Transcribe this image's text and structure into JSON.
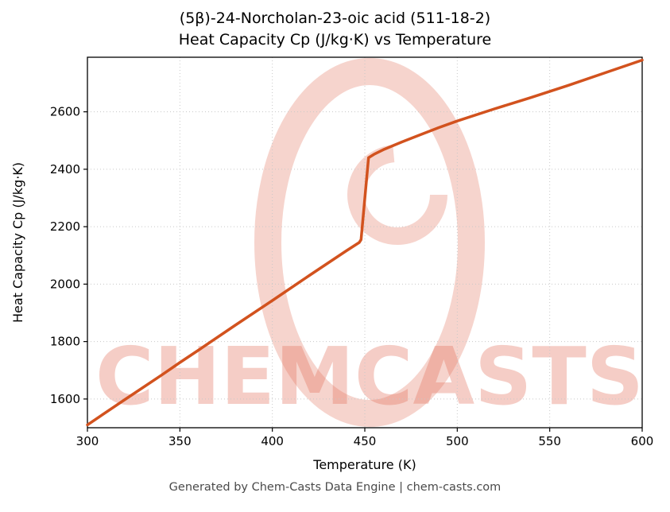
{
  "title": {
    "line1": "(5β)-24-Norcholan-23-oic acid (511-18-2)",
    "line2": "Heat Capacity Cp (J/kg·K) vs Temperature"
  },
  "footer": "Generated by Chem-Casts Data Engine | chem-casts.com",
  "watermark": {
    "text": "CHEMCASTS",
    "color": "#e2705a"
  },
  "chart_data": {
    "type": "line",
    "title": "(5β)-24-Norcholan-23-oic acid (511-18-2) Heat Capacity Cp (J/kg·K) vs Temperature",
    "xlabel": "Temperature (K)",
    "ylabel": "Heat Capacity Cp (J/kg·K)",
    "xlim": [
      300,
      600
    ],
    "ylim": [
      1500,
      2790
    ],
    "xticks": [
      300,
      350,
      400,
      450,
      500,
      550,
      600
    ],
    "yticks": [
      1600,
      1800,
      2000,
      2200,
      2400,
      2600
    ],
    "grid": true,
    "legend": "none",
    "line_color": "#d2521e",
    "series": [
      {
        "name": "Heat Capacity Cp",
        "x": [
          300,
          320,
          340,
          350,
          360,
          380,
          400,
          420,
          440,
          447,
          448,
          452,
          455,
          460,
          470,
          480,
          490,
          500,
          520,
          540,
          560,
          580,
          600
        ],
        "y": [
          1510,
          1597,
          1683,
          1727,
          1770,
          1857,
          1943,
          2030,
          2116,
          2145,
          2155,
          2440,
          2452,
          2468,
          2495,
          2520,
          2545,
          2568,
          2610,
          2650,
          2692,
          2736,
          2780
        ]
      }
    ]
  }
}
